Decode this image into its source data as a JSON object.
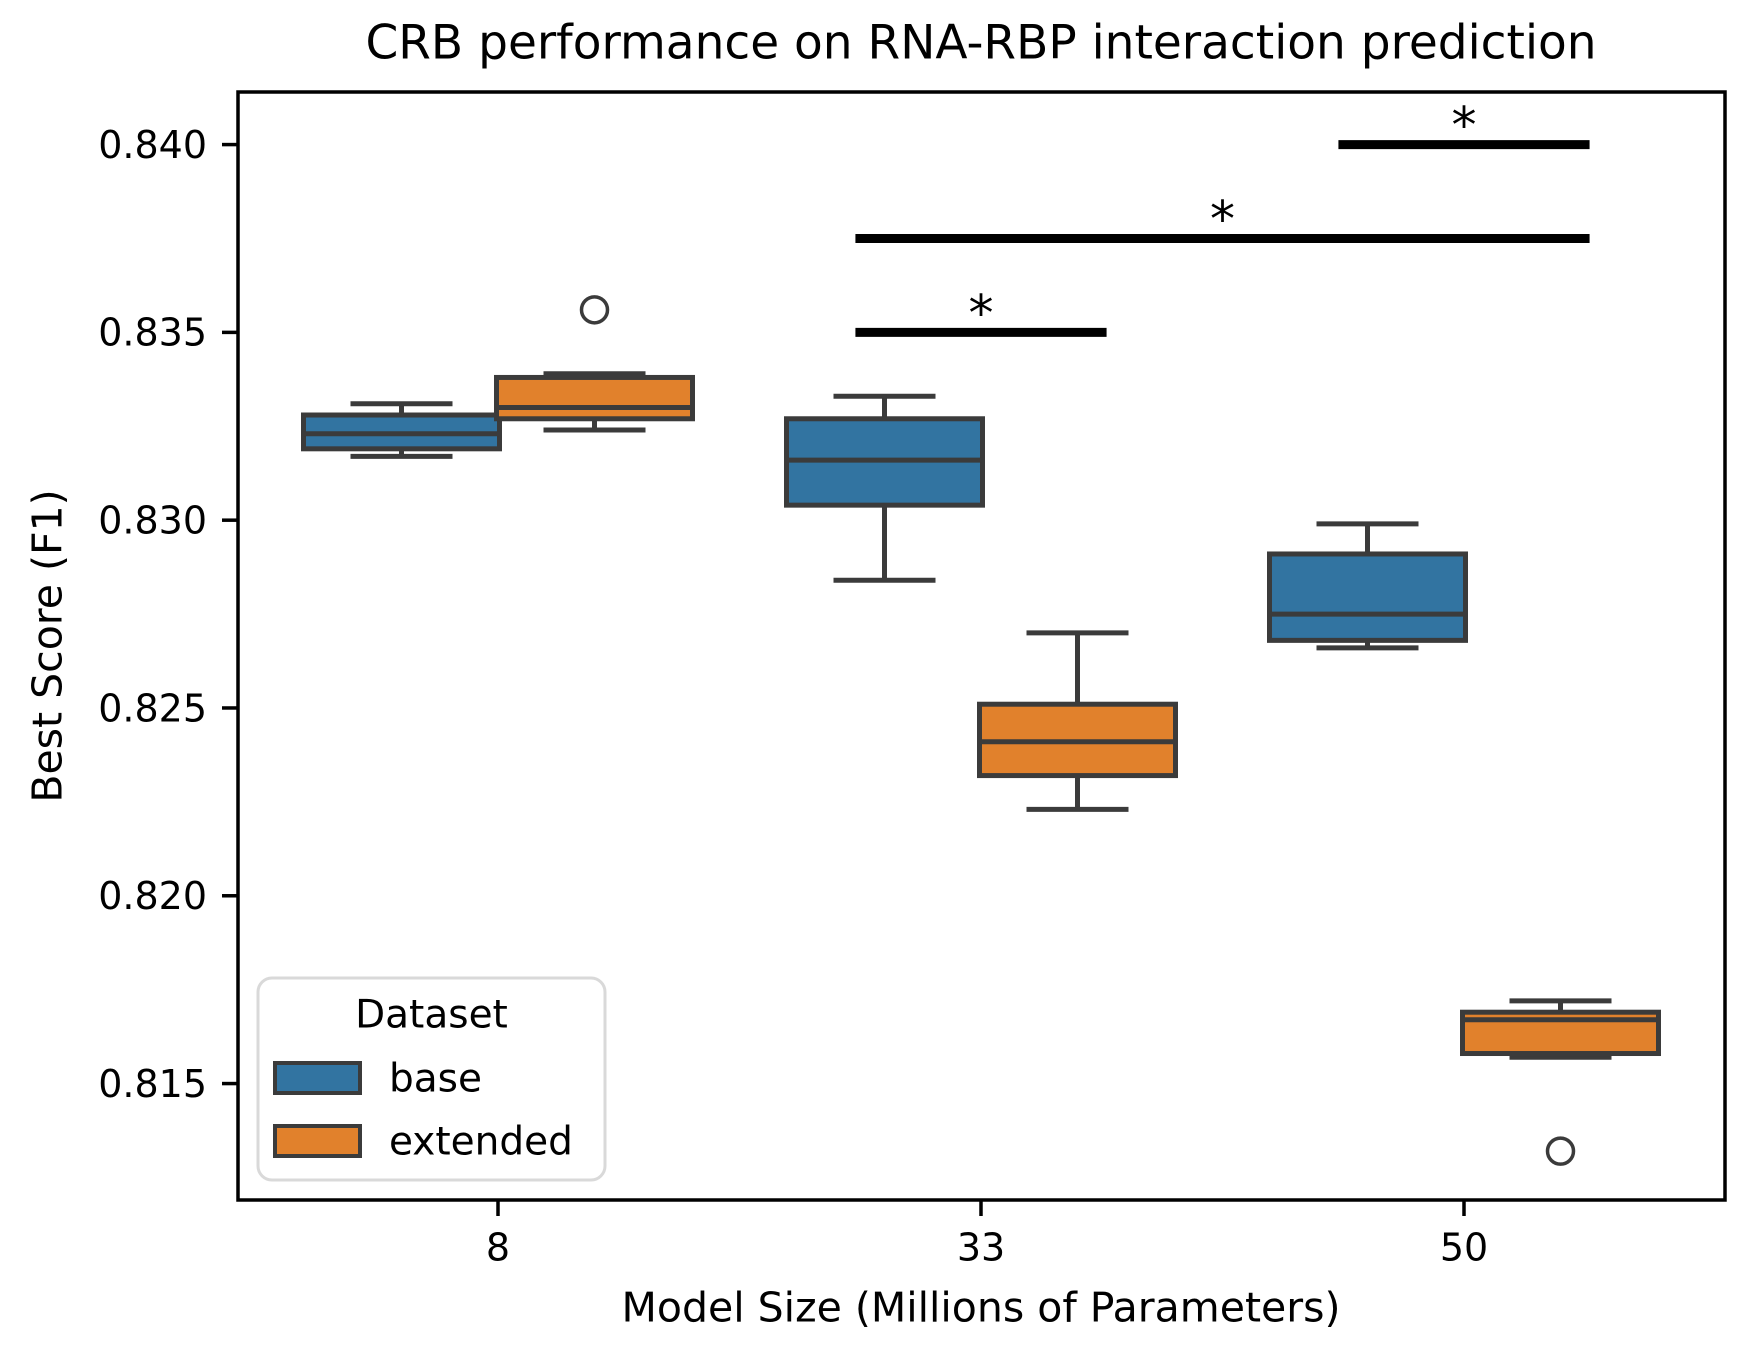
{
  "figure": {
    "background": "#ffffff"
  },
  "chart_data": {
    "type": "grouped_boxplot",
    "title": "CRB performance on RNA-RBP interaction prediction",
    "xlabel": "Model Size (Millions of Parameters)",
    "ylabel": "Best Score (F1)",
    "categories": [
      "8",
      "33",
      "50"
    ],
    "yticks": [
      0.84,
      0.835,
      0.83,
      0.825,
      0.82,
      0.815
    ],
    "ylim": [
      0.8119,
      0.8414
    ],
    "grid": false,
    "legend": {
      "title": "Dataset",
      "position": "lower-left"
    },
    "colors": {
      "base": "#3274A1",
      "extended": "#E1812C",
      "box_edge": "#3B3B3B",
      "spine": "#000000",
      "significance_bar": "#000000"
    },
    "series": [
      {
        "name": "base",
        "color": "#3274A1",
        "boxes": [
          {
            "category": "8",
            "whislo": 0.8317,
            "q1": 0.8319,
            "med": 0.8323,
            "q3": 0.8328,
            "whishi": 0.8331,
            "fliers": []
          },
          {
            "category": "33",
            "whislo": 0.8284,
            "q1": 0.8304,
            "med": 0.8316,
            "q3": 0.8327,
            "whishi": 0.8333,
            "fliers": []
          },
          {
            "category": "50",
            "whislo": 0.8266,
            "q1": 0.8268,
            "med": 0.8275,
            "q3": 0.8291,
            "whishi": 0.8299,
            "fliers": []
          }
        ]
      },
      {
        "name": "extended",
        "color": "#E1812C",
        "boxes": [
          {
            "category": "8",
            "whislo": 0.8324,
            "q1": 0.8327,
            "med": 0.833,
            "q3": 0.8338,
            "whishi": 0.8339,
            "fliers": [
              0.8356
            ]
          },
          {
            "category": "33",
            "whislo": 0.8223,
            "q1": 0.8232,
            "med": 0.8241,
            "q3": 0.8251,
            "whishi": 0.827,
            "fliers": []
          },
          {
            "category": "50",
            "whislo": 0.8157,
            "q1": 0.8158,
            "med": 0.8167,
            "q3": 0.8169,
            "whishi": 0.8172,
            "fliers": [
              0.8132
            ]
          }
        ]
      }
    ],
    "significance_bars": [
      {
        "x1": 0.74,
        "x2": 1.26,
        "y": 0.835,
        "label": "*"
      },
      {
        "x1": 0.74,
        "x2": 2.26,
        "y": 0.8375,
        "label": "*"
      },
      {
        "x1": 1.74,
        "x2": 2.26,
        "y": 0.84,
        "label": "*"
      }
    ]
  }
}
